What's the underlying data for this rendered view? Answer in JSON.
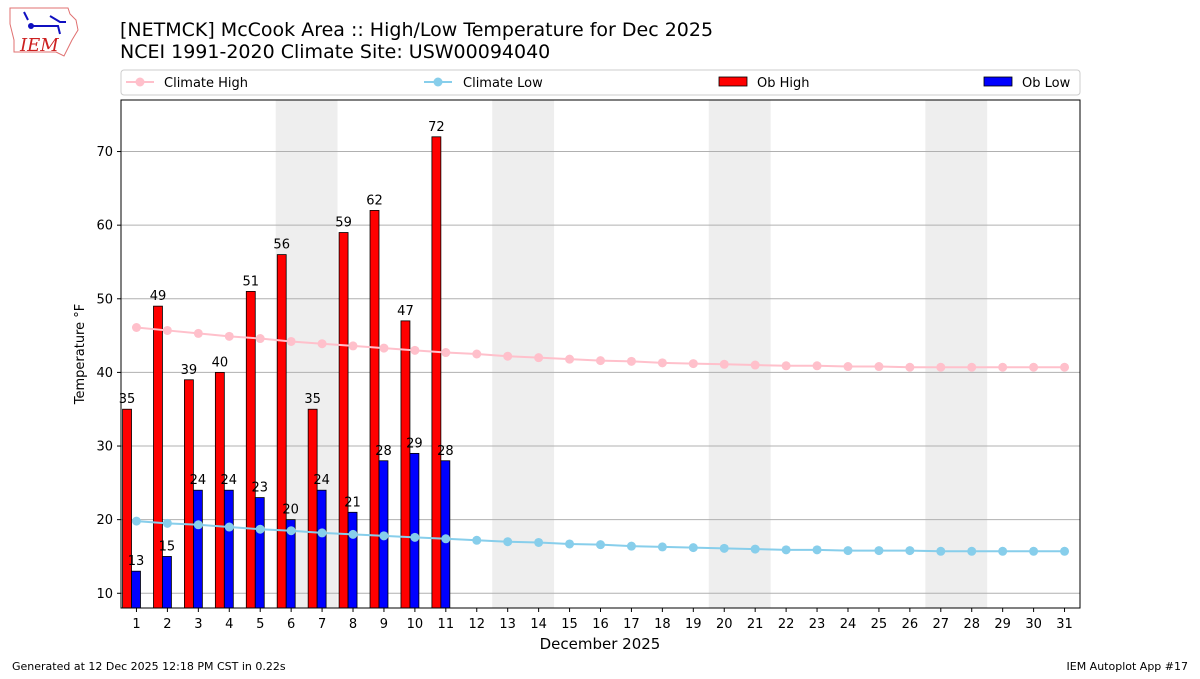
{
  "logo_text": "IEM",
  "title_line1": "[NETMCK] McCook Area :: High/Low Temperature for Dec 2025",
  "title_line2": "NCEI 1991-2020 Climate Site: USW00094040",
  "footer_left": "Generated at 12 Dec 2025 12:18 PM CST in 0.22s",
  "footer_right": "IEM Autoplot App #17",
  "colors": {
    "climate_high": "#ffc0cb",
    "climate_low": "#87ceeb",
    "ob_high": "#ff0000",
    "ob_low": "#0000ff",
    "weekend": "#eeeeee"
  },
  "chart_data": {
    "type": "bar",
    "xlabel": "December 2025",
    "ylabel": "Temperature °F",
    "xlim": [
      0.5,
      31.5
    ],
    "ylim": [
      8,
      77
    ],
    "yticks": [
      10,
      20,
      30,
      40,
      50,
      60,
      70
    ],
    "grid": "y",
    "legend": {
      "placement": "top",
      "entries": [
        "Climate High",
        "Climate Low",
        "Ob High",
        "Ob Low"
      ]
    },
    "weekend_shading": [
      [
        6,
        7
      ],
      [
        13,
        14
      ],
      [
        20,
        21
      ],
      [
        27,
        28
      ]
    ],
    "days": [
      1,
      2,
      3,
      4,
      5,
      6,
      7,
      8,
      9,
      10,
      11,
      12,
      13,
      14,
      15,
      16,
      17,
      18,
      19,
      20,
      21,
      22,
      23,
      24,
      25,
      26,
      27,
      28,
      29,
      30,
      31
    ],
    "series": [
      {
        "name": "Climate High",
        "kind": "line",
        "values": [
          46.1,
          45.7,
          45.3,
          44.9,
          44.6,
          44.2,
          43.9,
          43.6,
          43.3,
          43.0,
          42.7,
          42.5,
          42.2,
          42.0,
          41.8,
          41.6,
          41.5,
          41.3,
          41.2,
          41.1,
          41.0,
          40.9,
          40.9,
          40.8,
          40.8,
          40.7,
          40.7,
          40.7,
          40.7,
          40.7,
          40.7
        ]
      },
      {
        "name": "Climate Low",
        "kind": "line",
        "values": [
          19.8,
          19.5,
          19.3,
          19.0,
          18.7,
          18.5,
          18.2,
          18.0,
          17.8,
          17.6,
          17.4,
          17.2,
          17.0,
          16.9,
          16.7,
          16.6,
          16.4,
          16.3,
          16.2,
          16.1,
          16.0,
          15.9,
          15.9,
          15.8,
          15.8,
          15.8,
          15.7,
          15.7,
          15.7,
          15.7,
          15.7
        ]
      },
      {
        "name": "Ob High",
        "kind": "bar",
        "values": [
          35,
          49,
          39,
          40,
          51,
          56,
          35,
          59,
          62,
          47,
          72
        ]
      },
      {
        "name": "Ob Low",
        "kind": "bar",
        "values": [
          13,
          15,
          24,
          24,
          23,
          20,
          24,
          21,
          28,
          29,
          28
        ]
      }
    ]
  }
}
